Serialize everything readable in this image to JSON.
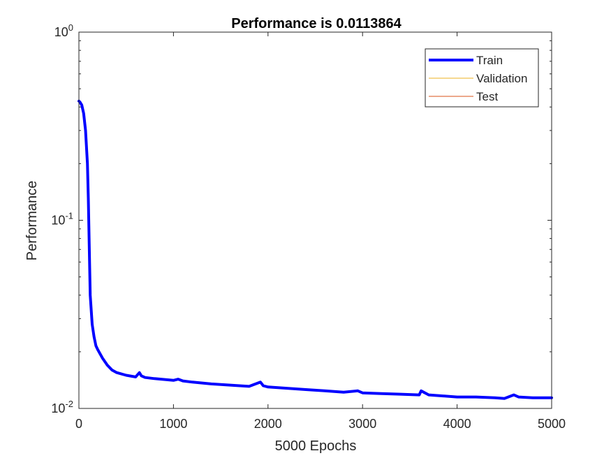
{
  "chart_data": {
    "type": "line",
    "title": "Performance is 0.0113864",
    "xlabel": "5000 Epochs",
    "ylabel": "Performance",
    "xlim": [
      0,
      5000
    ],
    "ylim": [
      0.01,
      1
    ],
    "yscale": "log",
    "x_ticks": [
      0,
      1000,
      2000,
      3000,
      4000,
      5000
    ],
    "x_tick_labels": [
      "0",
      "1000",
      "2000",
      "3000",
      "4000",
      "5000"
    ],
    "y_ticks": [
      0.01,
      0.1,
      1
    ],
    "y_tick_labels": [
      {
        "base": "10",
        "exp": "-2"
      },
      {
        "base": "10",
        "exp": "-1"
      },
      {
        "base": "10",
        "exp": "0"
      }
    ],
    "grid": false,
    "legend": "top-right",
    "series": [
      {
        "name": "Train",
        "color": "#0000ff",
        "x": [
          0,
          10,
          30,
          50,
          70,
          90,
          100,
          110,
          120,
          140,
          160,
          180,
          200,
          250,
          300,
          350,
          400,
          500,
          600,
          640,
          660,
          700,
          800,
          1000,
          1050,
          1100,
          1200,
          1400,
          1600,
          1800,
          1920,
          1950,
          2000,
          2200,
          2400,
          2600,
          2800,
          2950,
          3000,
          3200,
          3400,
          3600,
          3620,
          3700,
          3800,
          4000,
          4200,
          4400,
          4500,
          4600,
          4650,
          4800,
          5000
        ],
        "y": [
          0.43,
          0.425,
          0.41,
          0.37,
          0.3,
          0.2,
          0.13,
          0.07,
          0.04,
          0.028,
          0.024,
          0.0215,
          0.0205,
          0.0185,
          0.017,
          0.016,
          0.0155,
          0.015,
          0.0147,
          0.0155,
          0.0149,
          0.0146,
          0.0144,
          0.0141,
          0.0143,
          0.014,
          0.0138,
          0.0135,
          0.0133,
          0.0131,
          0.0138,
          0.0132,
          0.013,
          0.0128,
          0.0126,
          0.0124,
          0.0122,
          0.0124,
          0.0121,
          0.012,
          0.0119,
          0.0118,
          0.0124,
          0.0118,
          0.0117,
          0.0115,
          0.0115,
          0.0114,
          0.0113,
          0.0118,
          0.0115,
          0.0114,
          0.0114
        ]
      },
      {
        "name": "Validation",
        "color": "#edb120",
        "x": [],
        "y": []
      },
      {
        "name": "Test",
        "color": "#d95319",
        "x": [],
        "y": []
      }
    ]
  }
}
